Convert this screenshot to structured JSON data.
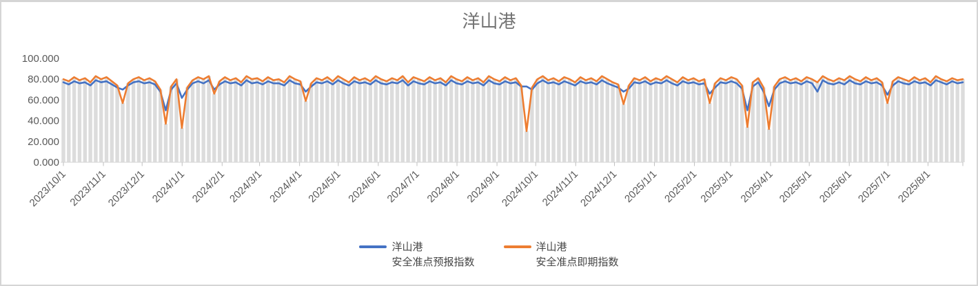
{
  "title": "洋山港",
  "colors": {
    "forecast_line": "#4472C4",
    "spot_line": "#ED7D31",
    "bar_fill": "#DCDCDC",
    "axis_line": "#D9D9D9",
    "tick_mark": "#BFBFBF",
    "axis_text": "#595959",
    "title_text": "#737373",
    "legend_text": "#454545",
    "frame_border": "#D5D5D5"
  },
  "chart_data": {
    "type": "line",
    "title": "洋山港",
    "xlabel": "",
    "ylabel": "",
    "ylim": [
      0,
      100
    ],
    "grid": false,
    "legend_position": "bottom",
    "y_tick_labels": [
      "0.000",
      "20.000",
      "40.000",
      "60.000",
      "80.000",
      "100.000"
    ],
    "x_tick_labels": [
      "2023/10/1",
      "2023/11/1",
      "2023/12/1",
      "2024/1/1",
      "2024/2/1",
      "2024/3/1",
      "2024/4/1",
      "2024/5/1",
      "2024/6/1",
      "2024/7/1",
      "2024/8/1",
      "2024/9/1",
      "2024/10/1",
      "2024/11/1",
      "2024/12/1",
      "2025/1/1",
      "2025/2/1",
      "2025/3/1",
      "2025/4/1",
      "2025/5/1",
      "2025/6/1",
      "2025/7/1",
      "2025/8/1"
    ],
    "bar_color": "#DCDCDC",
    "bars_follow_series": "洋山港 安全准点即期指数",
    "series": [
      {
        "name": "洋山港 安全准点预报指数",
        "legend_lines": [
          "洋山港",
          "安全准点预报指数"
        ],
        "color": "#4472C4",
        "values": [
          77,
          75,
          78,
          76,
          77,
          74,
          79,
          77,
          78,
          75,
          72,
          70,
          74,
          77,
          78,
          76,
          77,
          75,
          68,
          50,
          70,
          76,
          62,
          70,
          76,
          78,
          76,
          79,
          70,
          75,
          78,
          76,
          77,
          74,
          79,
          76,
          77,
          75,
          78,
          76,
          76,
          74,
          79,
          76,
          75,
          68,
          73,
          77,
          76,
          78,
          75,
          79,
          76,
          74,
          78,
          76,
          77,
          75,
          79,
          76,
          75,
          77,
          76,
          79,
          74,
          78,
          76,
          75,
          78,
          76,
          77,
          74,
          79,
          76,
          75,
          78,
          76,
          77,
          74,
          79,
          76,
          75,
          78,
          76,
          77,
          73,
          73,
          70,
          76,
          79,
          76,
          77,
          75,
          78,
          76,
          74,
          78,
          76,
          77,
          75,
          79,
          76,
          74,
          72,
          68,
          71,
          77,
          76,
          78,
          75,
          77,
          76,
          79,
          76,
          74,
          78,
          76,
          77,
          75,
          76,
          66,
          72,
          77,
          76,
          78,
          76,
          71,
          50,
          73,
          77,
          68,
          54,
          70,
          76,
          78,
          76,
          77,
          75,
          78,
          76,
          68,
          79,
          76,
          75,
          77,
          75,
          79,
          76,
          75,
          78,
          76,
          77,
          74,
          65,
          74,
          78,
          76,
          75,
          78,
          76,
          77,
          74,
          79,
          77,
          75,
          78,
          76,
          77
        ]
      },
      {
        "name": "洋山港 安全准点即期指数",
        "legend_lines": [
          "洋山港",
          "安全准点即期指数"
        ],
        "color": "#ED7D31",
        "values": [
          80,
          78,
          82,
          79,
          81,
          77,
          83,
          80,
          82,
          78,
          74,
          57,
          76,
          80,
          82,
          79,
          81,
          78,
          70,
          37,
          73,
          80,
          33,
          72,
          79,
          82,
          80,
          83,
          66,
          78,
          82,
          79,
          81,
          77,
          83,
          80,
          81,
          78,
          82,
          79,
          80,
          77,
          83,
          80,
          78,
          59,
          76,
          81,
          79,
          82,
          78,
          83,
          80,
          77,
          82,
          79,
          81,
          78,
          83,
          80,
          78,
          81,
          79,
          83,
          77,
          82,
          80,
          78,
          82,
          79,
          81,
          77,
          83,
          80,
          78,
          82,
          79,
          81,
          77,
          83,
          80,
          78,
          82,
          79,
          81,
          74,
          30,
          72,
          80,
          83,
          79,
          81,
          78,
          82,
          80,
          77,
          82,
          79,
          81,
          78,
          83,
          80,
          77,
          75,
          56,
          74,
          81,
          79,
          82,
          78,
          81,
          79,
          83,
          80,
          77,
          82,
          79,
          81,
          78,
          80,
          57,
          76,
          81,
          79,
          82,
          80,
          74,
          34,
          77,
          81,
          72,
          32,
          73,
          80,
          82,
          79,
          81,
          78,
          82,
          80,
          77,
          83,
          80,
          78,
          81,
          79,
          83,
          80,
          78,
          82,
          79,
          81,
          77,
          57,
          78,
          82,
          80,
          78,
          82,
          79,
          81,
          77,
          83,
          80,
          78,
          81,
          79,
          80
        ]
      }
    ]
  }
}
